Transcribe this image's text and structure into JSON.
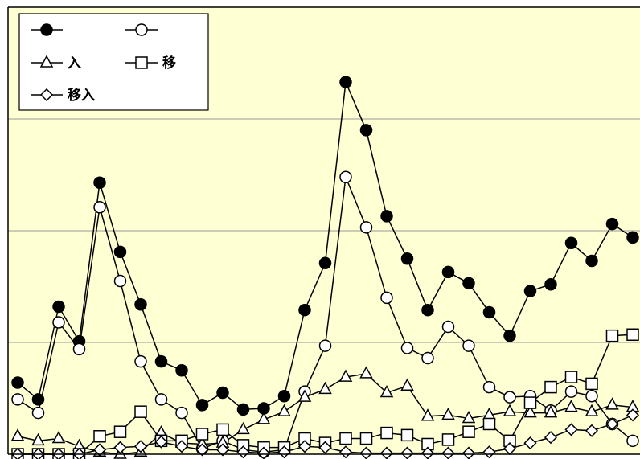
{
  "chart_data": {
    "type": "line",
    "categories": [
      null,
      null,
      null,
      null,
      null,
      null,
      null,
      null,
      null,
      null,
      null,
      null,
      null,
      null,
      null,
      null,
      null,
      null,
      null,
      null,
      null,
      null,
      null,
      null,
      null,
      null,
      null,
      null,
      null,
      null,
      null
    ],
    "ylim": [
      0,
      4
    ],
    "yticks": [
      1,
      2,
      3
    ],
    "grid": true,
    "legend": "top-left",
    "series": [
      {
        "marker": "filled-circle",
        "color": "#000000",
        "values": [
          0.64,
          0.49,
          1.32,
          1.01,
          2.43,
          1.81,
          1.34,
          0.83,
          0.75,
          0.44,
          0.55,
          0.4,
          0.41,
          0.52,
          1.29,
          1.71,
          3.33,
          2.9,
          2.13,
          1.75,
          1.29,
          1.63,
          1.53,
          1.27,
          1.06,
          1.46,
          1.52,
          1.89,
          1.73,
          2.06,
          1.94
        ]
      },
      {
        "marker": "circle",
        "color": "#000000",
        "values": [
          0.49,
          0.37,
          1.18,
          0.94,
          2.21,
          1.55,
          0.83,
          0.49,
          0.37,
          0.05,
          0.12,
          0.04,
          0.02,
          0.04,
          0.56,
          0.97,
          2.48,
          2.03,
          1.4,
          0.95,
          0.86,
          1.14,
          0.97,
          0.6,
          0.51,
          0.52,
          0.39,
          0.56,
          0.52,
          0.27,
          0.12
        ]
      },
      {
        "name": "入",
        "marker": "triangle",
        "color": "#000000",
        "values": [
          0.16,
          0.12,
          0.14,
          0.07,
          0.02,
          0.0,
          0.02,
          0.19,
          0.1,
          0.09,
          0.1,
          0.22,
          0.31,
          0.38,
          0.51,
          0.58,
          0.69,
          0.72,
          0.55,
          0.61,
          0.34,
          0.35,
          0.32,
          0.35,
          0.38,
          0.37,
          0.37,
          0.42,
          0.38,
          0.44,
          0.42
        ]
      },
      {
        "name": "移",
        "marker": "square",
        "color": "#000000",
        "values": [
          0,
          0,
          0,
          0,
          0.16,
          0.2,
          0.38,
          0.12,
          0.12,
          0.18,
          0.22,
          0.08,
          0.06,
          0.06,
          0.14,
          0.1,
          0.14,
          0.14,
          0.19,
          0.17,
          0.09,
          0.13,
          0.2,
          0.27,
          0.12,
          0.46,
          0.6,
          0.69,
          0.63,
          1.06,
          1.07
        ]
      },
      {
        "name": "移入",
        "marker": "diamond",
        "color": "#000000",
        "values": [
          0,
          0,
          0,
          0,
          0.04,
          0.06,
          0.07,
          0.11,
          0.07,
          0.04,
          0.04,
          0.02,
          0.01,
          0.02,
          0.07,
          0.06,
          0.02,
          0.01,
          0.01,
          0.01,
          0.01,
          0.01,
          0.01,
          0.02,
          0.05,
          0.1,
          0.15,
          0.22,
          0.21,
          0.27,
          0.35
        ]
      }
    ]
  }
}
